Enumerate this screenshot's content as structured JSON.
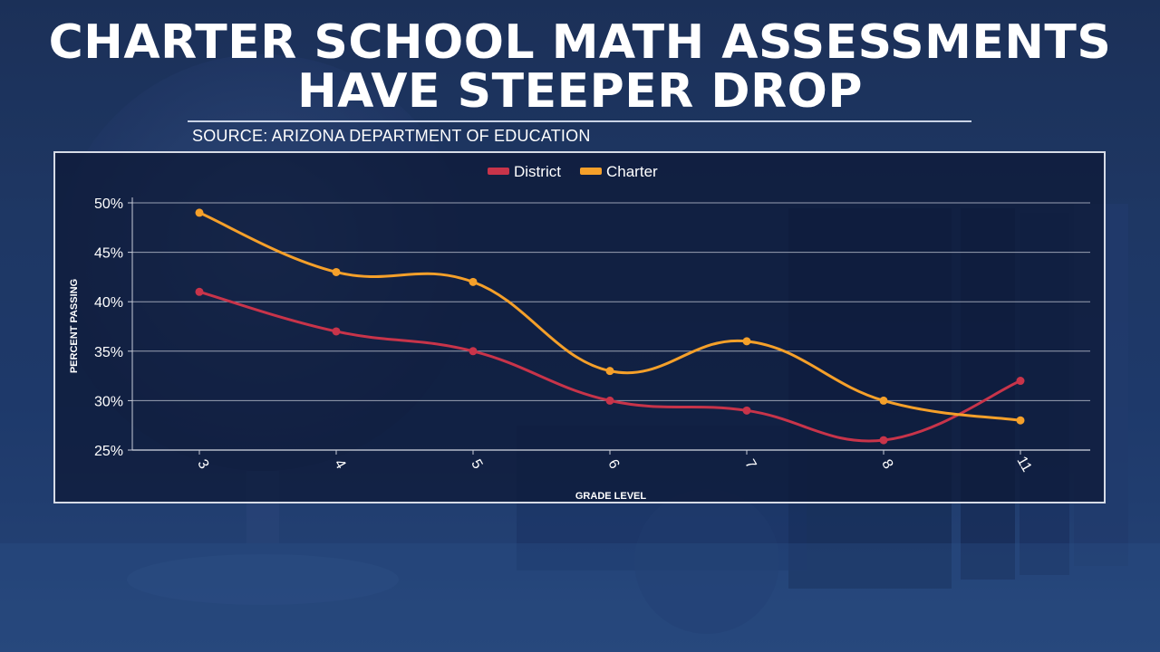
{
  "title": {
    "line1": "CHARTER SCHOOL MATH ASSESSMENTS",
    "line2": "HAVE STEEPER DROP"
  },
  "source": "SOURCE: ARIZONA DEPARTMENT OF EDUCATION",
  "colors": {
    "district": "#c8344a",
    "charter": "#f5a02a",
    "grid": "#c7ccd8"
  },
  "chart_data": {
    "type": "line",
    "title": "",
    "xlabel": "GRADE LEVEL",
    "ylabel": "PERCENT PASSING",
    "categories": [
      "3",
      "4",
      "5",
      "6",
      "7",
      "8",
      "11"
    ],
    "ylim": [
      25,
      50
    ],
    "yticks": [
      25,
      30,
      35,
      40,
      45,
      50
    ],
    "ytick_labels": [
      "25%",
      "30%",
      "35%",
      "40%",
      "45%",
      "50%"
    ],
    "legend_position": "top-center",
    "grid": true,
    "series": [
      {
        "name": "District",
        "values": [
          41,
          37,
          35,
          30,
          29,
          26,
          32
        ]
      },
      {
        "name": "Charter",
        "values": [
          49,
          43,
          42,
          33,
          36,
          30,
          28
        ]
      }
    ]
  }
}
